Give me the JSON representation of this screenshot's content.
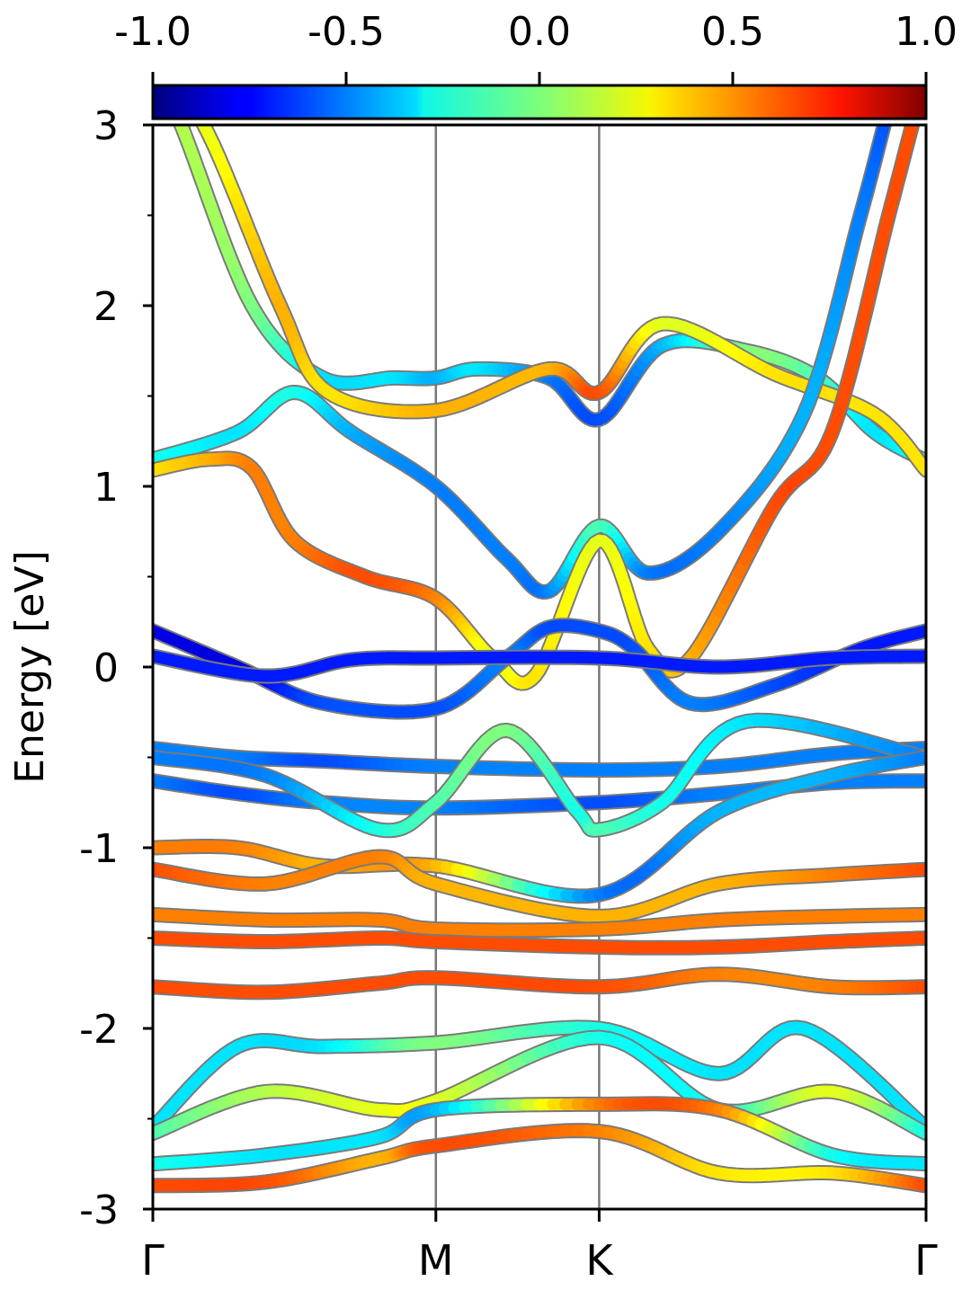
{
  "chart_data": {
    "type": "line",
    "subtype": "electronic band structure with projected character colormap",
    "ylabel": "Energy [eV]",
    "xlabel": "",
    "ylim": [
      -3,
      3
    ],
    "ytick_labels": [
      "-3",
      "-2",
      "-1",
      "0",
      "1",
      "2",
      "3"
    ],
    "yticks": [
      -3,
      -2,
      -1,
      0,
      1,
      2,
      3
    ],
    "yminor_ticks": [
      -2.5,
      -1.5,
      -0.5,
      0.5,
      1.5,
      2.5
    ],
    "kpath_labels": [
      "Γ",
      "M",
      "K",
      "Γ"
    ],
    "kpath_positions": [
      0,
      1,
      1.577,
      2.732
    ],
    "high_symmetry_lines": [
      "M",
      "K"
    ],
    "colorbar": {
      "colormap": "jet",
      "range": [
        -1.0,
        1.0
      ],
      "tick_labels": [
        "-1.0",
        "-0.5",
        "0.0",
        "0.5",
        "1.0"
      ],
      "ticks": [
        -1.0,
        -0.5,
        0.0,
        0.5,
        1.0
      ],
      "placement": "top"
    },
    "bands": [
      {
        "id": "b01",
        "points": [
          [
            0,
            3.3
          ],
          [
            0.1,
            3.0
          ],
          [
            0.35,
            2.0
          ],
          [
            0.6,
            1.6
          ],
          [
            0.85,
            1.6
          ],
          [
            1.0,
            1.6
          ],
          [
            1.15,
            1.65
          ],
          [
            1.4,
            1.6
          ],
          [
            1.577,
            1.37
          ],
          [
            1.8,
            1.78
          ],
          [
            2.1,
            1.75
          ],
          [
            2.35,
            1.6
          ],
          [
            2.55,
            1.3
          ],
          [
            2.732,
            1.14
          ]
        ],
        "color_values": [
          0.1,
          0.1,
          0.0,
          -0.3,
          -0.3,
          -0.4,
          -0.3,
          -0.5,
          -0.6,
          -0.4,
          0.0,
          -0.1,
          -0.3,
          -0.2
        ]
      },
      {
        "id": "b02",
        "points": [
          [
            0,
            3.3
          ],
          [
            0.18,
            3.0
          ],
          [
            0.45,
            2.0
          ],
          [
            0.62,
            1.52
          ],
          [
            1.0,
            1.42
          ],
          [
            1.4,
            1.65
          ],
          [
            1.577,
            1.52
          ],
          [
            1.8,
            1.9
          ],
          [
            2.2,
            1.62
          ],
          [
            2.55,
            1.4
          ],
          [
            2.732,
            1.09
          ]
        ],
        "color_values": [
          0.2,
          0.2,
          0.4,
          0.3,
          0.4,
          0.4,
          0.6,
          0.2,
          0.3,
          0.3,
          0.3
        ]
      },
      {
        "id": "b03",
        "points": [
          [
            0,
            1.15
          ],
          [
            0.3,
            1.3
          ],
          [
            0.5,
            1.52
          ],
          [
            0.7,
            1.3
          ],
          [
            1.0,
            1.0
          ],
          [
            1.25,
            0.6
          ],
          [
            1.4,
            0.42
          ],
          [
            1.577,
            0.78
          ],
          [
            1.75,
            0.52
          ],
          [
            2.0,
            0.75
          ],
          [
            2.3,
            1.4
          ],
          [
            2.5,
            2.5
          ],
          [
            2.6,
            3.1
          ]
        ],
        "color_values": [
          -0.2,
          -0.3,
          -0.2,
          -0.4,
          -0.5,
          -0.5,
          -0.5,
          -0.1,
          -0.5,
          -0.5,
          -0.4,
          -0.5,
          -0.6
        ]
      },
      {
        "id": "b04",
        "points": [
          [
            0,
            1.09
          ],
          [
            0.2,
            1.15
          ],
          [
            0.35,
            1.1
          ],
          [
            0.5,
            0.7
          ],
          [
            0.75,
            0.5
          ],
          [
            1.0,
            0.38
          ],
          [
            1.2,
            0.05
          ],
          [
            1.35,
            -0.05
          ],
          [
            1.577,
            0.7
          ],
          [
            1.75,
            0.1
          ],
          [
            1.9,
            0.05
          ],
          [
            2.2,
            0.9
          ],
          [
            2.4,
            1.3
          ],
          [
            2.6,
            2.5
          ],
          [
            2.7,
            3.1
          ]
        ],
        "color_values": [
          0.3,
          0.4,
          0.5,
          0.5,
          0.6,
          0.5,
          0.2,
          0.3,
          0.2,
          0.3,
          0.4,
          0.6,
          0.6,
          0.6,
          0.6
        ]
      },
      {
        "id": "b05",
        "points": [
          [
            0,
            0.2
          ],
          [
            0.3,
            0.0
          ],
          [
            0.6,
            -0.2
          ],
          [
            1.0,
            -0.23
          ],
          [
            1.25,
            0.05
          ],
          [
            1.4,
            0.22
          ],
          [
            1.577,
            0.2
          ],
          [
            1.7,
            0.1
          ],
          [
            1.9,
            -0.2
          ],
          [
            2.2,
            -0.1
          ],
          [
            2.5,
            0.1
          ],
          [
            2.732,
            0.2
          ]
        ],
        "color_values": [
          -0.8,
          -0.8,
          -0.6,
          -0.6,
          -0.5,
          -0.6,
          -0.6,
          -0.6,
          -0.5,
          -0.6,
          -0.7,
          -0.7
        ]
      },
      {
        "id": "b06",
        "points": [
          [
            0,
            0.06
          ],
          [
            0.4,
            -0.05
          ],
          [
            0.7,
            0.04
          ],
          [
            1.0,
            0.05
          ],
          [
            1.577,
            0.05
          ],
          [
            2.0,
            0.0
          ],
          [
            2.4,
            0.05
          ],
          [
            2.732,
            0.06
          ]
        ],
        "color_values": [
          -0.7,
          -0.7,
          -0.7,
          -0.7,
          -0.7,
          -0.7,
          -0.7,
          -0.7
        ]
      },
      {
        "id": "b07",
        "points": [
          [
            0,
            -0.45
          ],
          [
            0.3,
            -0.5
          ],
          [
            0.6,
            -0.52
          ],
          [
            1.0,
            -0.55
          ],
          [
            1.577,
            -0.57
          ],
          [
            2.0,
            -0.55
          ],
          [
            2.4,
            -0.48
          ],
          [
            2.732,
            -0.45
          ]
        ],
        "color_values": [
          -0.5,
          -0.5,
          -0.6,
          -0.5,
          -0.5,
          -0.5,
          -0.5,
          -0.5
        ]
      },
      {
        "id": "b08",
        "points": [
          [
            0,
            -0.63
          ],
          [
            0.3,
            -0.7
          ],
          [
            0.6,
            -0.75
          ],
          [
            1.0,
            -0.78
          ],
          [
            1.577,
            -0.75
          ],
          [
            2.0,
            -0.7
          ],
          [
            2.4,
            -0.64
          ],
          [
            2.732,
            -0.63
          ]
        ],
        "color_values": [
          -0.5,
          -0.6,
          -0.5,
          -0.5,
          -0.6,
          -0.5,
          -0.5,
          -0.5
        ]
      },
      {
        "id": "b09",
        "points": [
          [
            0,
            -0.5
          ],
          [
            0.4,
            -0.6
          ],
          [
            0.8,
            -0.9
          ],
          [
            1.0,
            -0.75
          ],
          [
            1.25,
            -0.35
          ],
          [
            1.5,
            -0.8
          ],
          [
            1.577,
            -0.9
          ],
          [
            1.8,
            -0.75
          ],
          [
            2.1,
            -0.3
          ],
          [
            2.732,
            -0.5
          ]
        ],
        "color_values": [
          -0.5,
          -0.5,
          -0.2,
          -0.1,
          0.0,
          -0.2,
          -0.1,
          -0.2,
          -0.3,
          -0.5
        ]
      },
      {
        "id": "b10",
        "points": [
          [
            0,
            -1.0
          ],
          [
            0.3,
            -1.0
          ],
          [
            0.6,
            -1.1
          ],
          [
            1.0,
            -1.1
          ],
          [
            1.577,
            -1.26
          ],
          [
            2.0,
            -0.8
          ],
          [
            2.4,
            -0.6
          ],
          [
            2.732,
            -0.5
          ]
        ],
        "color_values": [
          0.5,
          0.5,
          0.4,
          0.4,
          -0.5,
          -0.4,
          -0.4,
          -0.5
        ]
      },
      {
        "id": "b11",
        "points": [
          [
            0,
            -1.12
          ],
          [
            0.4,
            -1.2
          ],
          [
            0.8,
            -1.05
          ],
          [
            1.0,
            -1.2
          ],
          [
            1.577,
            -1.38
          ],
          [
            2.0,
            -1.2
          ],
          [
            2.4,
            -1.15
          ],
          [
            2.732,
            -1.12
          ]
        ],
        "color_values": [
          0.6,
          0.5,
          0.5,
          0.4,
          0.4,
          0.4,
          0.5,
          0.6
        ]
      },
      {
        "id": "b12",
        "points": [
          [
            0,
            -1.37
          ],
          [
            0.4,
            -1.4
          ],
          [
            0.8,
            -1.4
          ],
          [
            1.0,
            -1.45
          ],
          [
            1.577,
            -1.45
          ],
          [
            2.0,
            -1.4
          ],
          [
            2.4,
            -1.38
          ],
          [
            2.732,
            -1.37
          ]
        ],
        "color_values": [
          0.5,
          0.5,
          0.5,
          0.5,
          0.5,
          0.5,
          0.5,
          0.5
        ]
      },
      {
        "id": "b13",
        "points": [
          [
            0,
            -1.5
          ],
          [
            0.4,
            -1.52
          ],
          [
            0.8,
            -1.5
          ],
          [
            1.0,
            -1.52
          ],
          [
            1.577,
            -1.55
          ],
          [
            2.0,
            -1.55
          ],
          [
            2.4,
            -1.52
          ],
          [
            2.732,
            -1.5
          ]
        ],
        "color_values": [
          0.6,
          0.6,
          0.6,
          0.6,
          0.6,
          0.6,
          0.6,
          0.6
        ]
      },
      {
        "id": "b14",
        "points": [
          [
            0,
            -1.77
          ],
          [
            0.4,
            -1.8
          ],
          [
            0.8,
            -1.75
          ],
          [
            1.0,
            -1.72
          ],
          [
            1.577,
            -1.77
          ],
          [
            2.0,
            -1.7
          ],
          [
            2.4,
            -1.77
          ],
          [
            2.732,
            -1.77
          ]
        ],
        "color_values": [
          0.6,
          0.6,
          0.6,
          0.6,
          0.6,
          0.5,
          0.5,
          0.6
        ]
      },
      {
        "id": "b15",
        "points": [
          [
            0,
            -2.55
          ],
          [
            0.3,
            -2.1
          ],
          [
            0.6,
            -2.1
          ],
          [
            1.0,
            -2.08
          ],
          [
            1.577,
            -2.0
          ],
          [
            2.0,
            -2.25
          ],
          [
            2.3,
            -2.0
          ],
          [
            2.732,
            -2.55
          ]
        ],
        "color_values": [
          -0.3,
          -0.3,
          -0.3,
          0.0,
          -0.2,
          -0.3,
          -0.3,
          -0.3
        ]
      },
      {
        "id": "b16",
        "points": [
          [
            0,
            -2.58
          ],
          [
            0.4,
            -2.35
          ],
          [
            0.8,
            -2.45
          ],
          [
            1.0,
            -2.4
          ],
          [
            1.577,
            -2.05
          ],
          [
            2.0,
            -2.45
          ],
          [
            2.4,
            -2.35
          ],
          [
            2.732,
            -2.58
          ]
        ],
        "color_values": [
          -0.1,
          0.1,
          0.2,
          0.2,
          -0.2,
          -0.2,
          0.2,
          -0.2
        ]
      },
      {
        "id": "b17",
        "points": [
          [
            0,
            -2.75
          ],
          [
            0.4,
            -2.7
          ],
          [
            0.8,
            -2.6
          ],
          [
            1.0,
            -2.45
          ],
          [
            1.577,
            -2.42
          ],
          [
            2.0,
            -2.45
          ],
          [
            2.4,
            -2.7
          ],
          [
            2.732,
            -2.75
          ]
        ],
        "color_values": [
          -0.2,
          -0.3,
          -0.3,
          -0.4,
          0.5,
          0.5,
          -0.2,
          -0.3
        ]
      },
      {
        "id": "b18",
        "points": [
          [
            0,
            -2.87
          ],
          [
            0.4,
            -2.85
          ],
          [
            0.8,
            -2.72
          ],
          [
            1.0,
            -2.65
          ],
          [
            1.577,
            -2.57
          ],
          [
            2.0,
            -2.8
          ],
          [
            2.4,
            -2.8
          ],
          [
            2.732,
            -2.87
          ]
        ],
        "color_values": [
          0.6,
          0.6,
          0.4,
          0.6,
          0.5,
          0.3,
          0.3,
          0.6
        ]
      }
    ]
  }
}
